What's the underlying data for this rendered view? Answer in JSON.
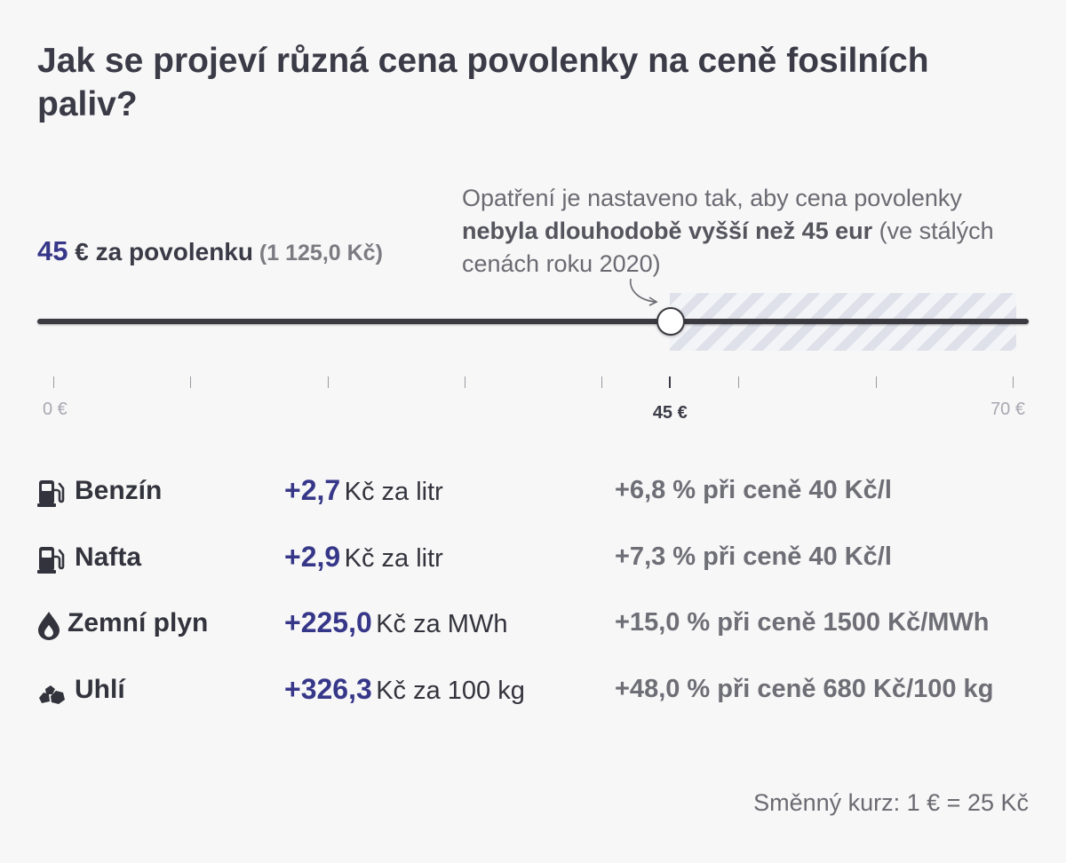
{
  "title": "Jak se projeví různá cena povolenky na ceně fosilních paliv?",
  "note": {
    "prefix": "Opatření je nastaveno tak, aby cena povolenky ",
    "bold": "nebyla dlouhodobě vyšší než 45 eur",
    "suffix": " (ve stálých cenách roku 2020)"
  },
  "price": {
    "value": "45",
    "unit_label": " € za povolenku",
    "czk_label": " (1 125,0 Kč)"
  },
  "slider": {
    "min": 0,
    "max": 70,
    "value": 45,
    "cap_value": 45,
    "tick_values": [
      0,
      10,
      20,
      30,
      40,
      45,
      50,
      60,
      70
    ],
    "labels": {
      "min": "0 €",
      "selected": "45 €",
      "max": "70 €"
    }
  },
  "fuels": [
    {
      "name": "Benzín",
      "icon": "fuel-pump-icon",
      "delta": "+2,7",
      "unit": "Kč za litr",
      "pct": "+6,8 % při ceně 40 Kč/l"
    },
    {
      "name": "Nafta",
      "icon": "fuel-pump-icon",
      "delta": "+2,9",
      "unit": "Kč za litr",
      "pct": "+7,3 % při ceně 40 Kč/l"
    },
    {
      "name": "Zemní plyn",
      "icon": "flame-drop-icon",
      "delta": "+225,0",
      "unit": "Kč za MWh",
      "pct": "+15,0 % při ceně 1500 Kč/MWh"
    },
    {
      "name": "Uhlí",
      "icon": "coal-icon",
      "delta": "+326,3",
      "unit": "Kč za 100 kg",
      "pct": "+48,0 % při ceně 680 Kč/100 kg"
    }
  ],
  "exchange_rate": "Směnný kurz: 1 € = 25 Kč",
  "colors": {
    "accent": "#37378a",
    "text": "#33333d",
    "muted": "#6e6e76",
    "track": "#3a3a40",
    "hatch": "#dfe1ea"
  }
}
